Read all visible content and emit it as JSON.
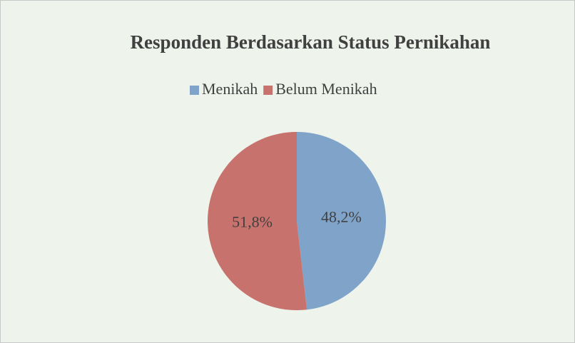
{
  "chart_data": {
    "type": "pie",
    "title": "Responden Berdasarkan Status Pernikahan",
    "categories": [
      "Menikah",
      "Belum Menikah"
    ],
    "values": [
      48.2,
      51.8
    ],
    "value_labels": [
      "48,2%",
      "51,8%"
    ],
    "colors": [
      "#7fa3c9",
      "#c8726e"
    ]
  }
}
